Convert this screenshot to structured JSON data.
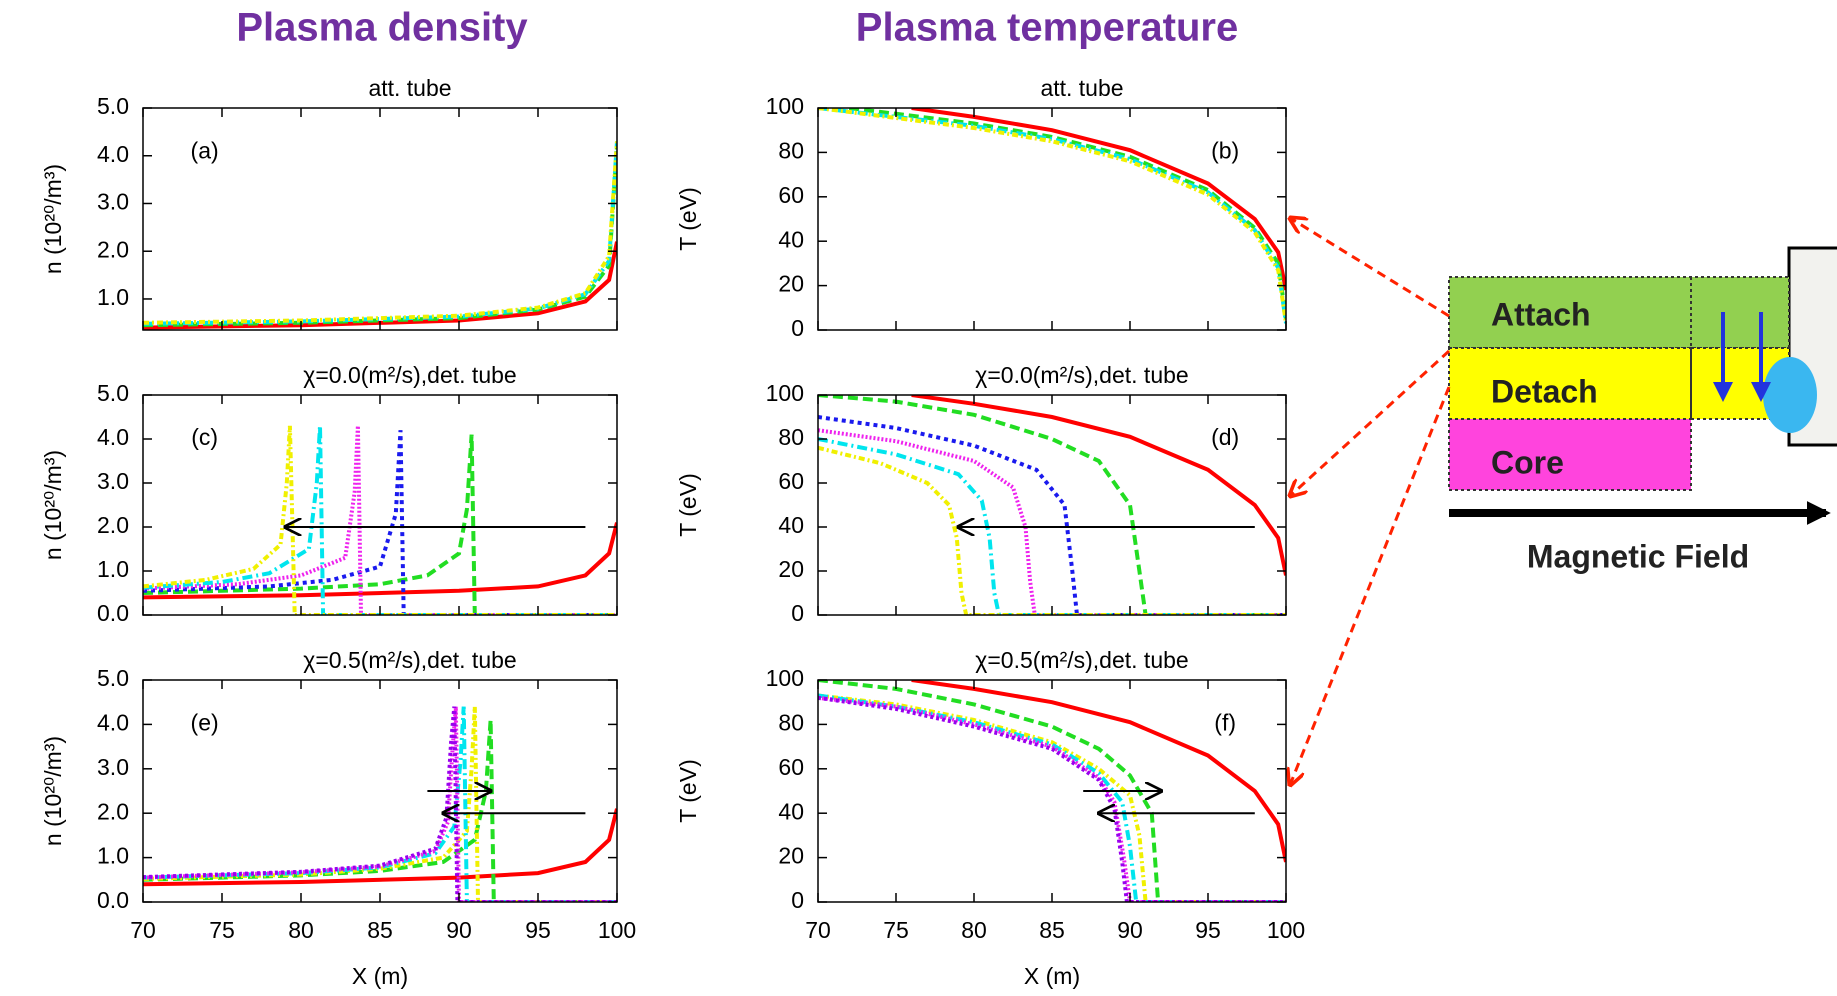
{
  "headings": [
    "Plasma density",
    "Plasma temperature"
  ],
  "diagram": {
    "labels": [
      "Attach",
      "Detach",
      "Core"
    ],
    "field": "Magnetic Field"
  },
  "chart_data": [
    {
      "type": "line",
      "title": "att. tube",
      "ylabel": "n (10²⁰/m³)",
      "annotation": "(a)",
      "xlim": [
        70,
        100
      ],
      "xticks": [
        70,
        75,
        80,
        85,
        90,
        95,
        100
      ],
      "show_xtick_labels": false,
      "ylim": [
        0.35,
        5.0
      ],
      "yticks": [
        {
          "value": 1,
          "label": "1.0"
        },
        {
          "value": 2,
          "label": "2.0"
        },
        {
          "value": 3,
          "label": "3.0"
        },
        {
          "value": 4,
          "label": "4.0"
        },
        {
          "value": 5,
          "label": "5.0"
        }
      ],
      "series": [
        {
          "color": "#ff0000",
          "dash": "",
          "x": [
            70,
            80,
            90,
            95,
            98,
            99.5,
            100
          ],
          "values": [
            0.4,
            0.45,
            0.55,
            0.7,
            0.95,
            1.4,
            2.2
          ]
        },
        {
          "color": "#22dd22",
          "dash": "10 5",
          "x": [
            70,
            80,
            90,
            95,
            98,
            99.5,
            100
          ],
          "values": [
            0.45,
            0.5,
            0.6,
            0.78,
            1.05,
            1.7,
            4.2
          ]
        },
        {
          "color": "#00e5ee",
          "dash": "10 4 2 4",
          "x": [
            70,
            80,
            90,
            95,
            98,
            99.5,
            100
          ],
          "values": [
            0.48,
            0.53,
            0.63,
            0.8,
            1.1,
            1.8,
            4.3
          ]
        },
        {
          "color": "#f0f000",
          "dash": "6 3 2 3",
          "x": [
            70,
            80,
            90,
            95,
            98,
            99.5,
            100
          ],
          "values": [
            0.5,
            0.55,
            0.65,
            0.82,
            1.12,
            1.9,
            4.3
          ]
        }
      ]
    },
    {
      "type": "line",
      "title": "att. tube",
      "ylabel": "T (eV)",
      "annotation": "(b)",
      "xlim": [
        70,
        100
      ],
      "xticks": [
        70,
        75,
        80,
        85,
        90,
        95,
        100
      ],
      "show_xtick_labels": false,
      "ylim": [
        0,
        100
      ],
      "yticks": [
        0,
        20,
        40,
        60,
        80,
        100
      ],
      "series": [
        {
          "color": "#ff0000",
          "dash": "",
          "x": [
            76,
            80,
            85,
            90,
            95,
            98,
            99.5,
            100
          ],
          "values": [
            100,
            96,
            90,
            81,
            66,
            50,
            35,
            18
          ]
        },
        {
          "color": "#22dd22",
          "dash": "10 5",
          "x": [
            72,
            80,
            85,
            90,
            95,
            98,
            99.5,
            100
          ],
          "values": [
            100,
            93,
            87,
            78,
            63,
            46,
            30,
            5
          ]
        },
        {
          "color": "#00e5ee",
          "dash": "10 4 2 4",
          "x": [
            70,
            80,
            85,
            90,
            95,
            98,
            99.5,
            100
          ],
          "values": [
            100,
            92,
            86,
            77,
            62,
            45,
            28,
            3
          ]
        },
        {
          "color": "#f0f000",
          "dash": "6 3 2 3",
          "x": [
            70,
            80,
            85,
            90,
            95,
            98,
            99.5,
            100
          ],
          "values": [
            100,
            91,
            85,
            76,
            61,
            44,
            27,
            3
          ]
        }
      ]
    },
    {
      "type": "line",
      "title": "χ=0.0(m²/s),det. tube",
      "ylabel": "n (10²⁰/m³)",
      "annotation": "(c)",
      "xlim": [
        70,
        100
      ],
      "xticks": [
        70,
        75,
        80,
        85,
        90,
        95,
        100
      ],
      "show_xtick_labels": false,
      "ylim": [
        0,
        5
      ],
      "yticks": [
        {
          "value": 0,
          "label": "0.0"
        },
        {
          "value": 1,
          "label": "1.0"
        },
        {
          "value": 2,
          "label": "2.0"
        },
        {
          "value": 3,
          "label": "3.0"
        },
        {
          "value": 4,
          "label": "4.0"
        },
        {
          "value": 5,
          "label": "5.0"
        }
      ],
      "series": [
        {
          "color": "#ff0000",
          "dash": "",
          "x": [
            70,
            80,
            90,
            95,
            98,
            99.5,
            100
          ],
          "values": [
            0.4,
            0.45,
            0.55,
            0.65,
            0.9,
            1.4,
            2.1
          ]
        },
        {
          "color": "#22dd22",
          "dash": "10 5",
          "x": [
            70,
            80,
            85,
            88,
            90,
            90.5,
            90.8,
            91,
            100
          ],
          "values": [
            0.5,
            0.6,
            0.7,
            0.9,
            1.4,
            2.4,
            4.1,
            0,
            0
          ]
        },
        {
          "color": "#1a1aee",
          "dash": "4 4",
          "x": [
            70,
            78,
            82,
            85,
            86,
            86.3,
            86.5,
            100
          ],
          "values": [
            0.55,
            0.65,
            0.8,
            1.1,
            2.3,
            4.2,
            0,
            0
          ]
        },
        {
          "color": "#ee22ee",
          "dash": "2 2",
          "x": [
            70,
            76,
            80,
            82.8,
            83.4,
            83.6,
            83.8,
            100
          ],
          "values": [
            0.6,
            0.7,
            0.9,
            1.3,
            2.8,
            4.3,
            0,
            0
          ]
        },
        {
          "color": "#00e5ee",
          "dash": "10 4 2 4",
          "x": [
            70,
            75,
            78,
            80.5,
            81,
            81.2,
            81.4,
            100
          ],
          "values": [
            0.62,
            0.75,
            0.95,
            1.5,
            3,
            4.3,
            0,
            0
          ]
        },
        {
          "color": "#f0f000",
          "dash": "6 3 2 3",
          "x": [
            70,
            74,
            77,
            78.7,
            79.1,
            79.3,
            79.6,
            100
          ],
          "values": [
            0.65,
            0.8,
            1.05,
            1.6,
            3,
            4.3,
            0,
            0
          ]
        }
      ]
    },
    {
      "type": "line",
      "title": "χ=0.0(m²/s),det. tube",
      "ylabel": "T (eV)",
      "annotation": "(d)",
      "xlim": [
        70,
        100
      ],
      "xticks": [
        70,
        75,
        80,
        85,
        90,
        95,
        100
      ],
      "show_xtick_labels": false,
      "ylim": [
        0,
        100
      ],
      "yticks": [
        0,
        20,
        40,
        60,
        80,
        100
      ],
      "series": [
        {
          "color": "#ff0000",
          "dash": "",
          "x": [
            76,
            80,
            85,
            90,
            95,
            98,
            99.5,
            100
          ],
          "values": [
            100,
            96,
            90,
            81,
            66,
            50,
            35,
            18
          ]
        },
        {
          "color": "#22dd22",
          "dash": "10 5",
          "x": [
            70,
            75,
            80,
            85,
            88,
            90,
            90.6,
            91,
            100
          ],
          "values": [
            100,
            97,
            91,
            80,
            70,
            50,
            20,
            0,
            0
          ]
        },
        {
          "color": "#1a1aee",
          "dash": "4 4",
          "x": [
            70,
            75,
            80,
            84,
            85.8,
            86.3,
            86.6,
            100
          ],
          "values": [
            90,
            85,
            77,
            66,
            50,
            20,
            0,
            0
          ]
        },
        {
          "color": "#ee22ee",
          "dash": "2 2",
          "x": [
            70,
            75,
            80,
            82.5,
            83.3,
            83.6,
            83.9,
            100
          ],
          "values": [
            84,
            79,
            70,
            58,
            40,
            15,
            0,
            0
          ]
        },
        {
          "color": "#00e5ee",
          "dash": "10 4 2 4",
          "x": [
            70,
            75,
            79,
            80.5,
            81,
            81.3,
            81.6,
            100
          ],
          "values": [
            80,
            73,
            64,
            52,
            35,
            10,
            0,
            0
          ]
        },
        {
          "color": "#f0f000",
          "dash": "6 3 2 3",
          "x": [
            70,
            74,
            77,
            78.4,
            78.9,
            79.2,
            79.5,
            100
          ],
          "values": [
            76,
            69,
            60,
            50,
            35,
            10,
            0,
            0
          ]
        }
      ]
    },
    {
      "type": "line",
      "title": "χ=0.5(m²/s),det. tube",
      "ylabel": "n (10²⁰/m³)",
      "xlabel": "X (m)",
      "annotation": "(e)",
      "xlim": [
        70,
        100
      ],
      "xticks": [
        70,
        75,
        80,
        85,
        90,
        95,
        100
      ],
      "show_xtick_labels": true,
      "ylim": [
        0,
        5
      ],
      "yticks": [
        {
          "value": 0,
          "label": "0.0"
        },
        {
          "value": 1,
          "label": "1.0"
        },
        {
          "value": 2,
          "label": "2.0"
        },
        {
          "value": 3,
          "label": "3.0"
        },
        {
          "value": 4,
          "label": "4.0"
        },
        {
          "value": 5,
          "label": "5.0"
        }
      ],
      "series": [
        {
          "color": "#ff0000",
          "dash": "",
          "x": [
            70,
            80,
            90,
            95,
            98,
            99.5,
            100
          ],
          "values": [
            0.4,
            0.45,
            0.55,
            0.65,
            0.9,
            1.4,
            2.1
          ]
        },
        {
          "color": "#22dd22",
          "dash": "10 5",
          "x": [
            70,
            80,
            85,
            89,
            91,
            91.7,
            92,
            92.2,
            100
          ],
          "values": [
            0.5,
            0.6,
            0.7,
            0.9,
            1.4,
            2.5,
            4.1,
            0,
            0
          ]
        },
        {
          "color": "#f0f000",
          "dash": "6 3 2 3",
          "x": [
            70,
            80,
            85,
            89,
            90.5,
            90.8,
            91,
            91.2,
            100
          ],
          "values": [
            0.52,
            0.62,
            0.75,
            1.0,
            1.6,
            3,
            4.4,
            0,
            0
          ]
        },
        {
          "color": "#00e5ee",
          "dash": "10 4 2 4",
          "x": [
            70,
            80,
            85,
            88.5,
            89.7,
            90.1,
            90.3,
            90.5,
            100
          ],
          "values": [
            0.55,
            0.65,
            0.78,
            1.1,
            1.7,
            3.2,
            4.4,
            0,
            0
          ]
        },
        {
          "color": "#ee22ee",
          "dash": "2 2",
          "x": [
            70,
            80,
            85,
            88.5,
            89.3,
            89.6,
            89.8,
            90,
            100
          ],
          "values": [
            0.55,
            0.67,
            0.8,
            1.15,
            1.8,
            3.5,
            4.4,
            0,
            0
          ]
        },
        {
          "color": "#9900ee",
          "dash": "3 3",
          "x": [
            70,
            80,
            85,
            88.5,
            89.2,
            89.5,
            89.7,
            89.9,
            100
          ],
          "values": [
            0.56,
            0.68,
            0.82,
            1.2,
            1.9,
            3.6,
            4.4,
            0,
            0
          ]
        }
      ]
    },
    {
      "type": "line",
      "title": "χ=0.5(m²/s),det. tube",
      "ylabel": "T (eV)",
      "xlabel": "X (m)",
      "annotation": "(f)",
      "xlim": [
        70,
        100
      ],
      "xticks": [
        70,
        75,
        80,
        85,
        90,
        95,
        100
      ],
      "show_xtick_labels": true,
      "ylim": [
        0,
        100
      ],
      "yticks": [
        0,
        20,
        40,
        60,
        80,
        100
      ],
      "series": [
        {
          "color": "#ff0000",
          "dash": "",
          "x": [
            76,
            80,
            85,
            90,
            95,
            98,
            99.5,
            100
          ],
          "values": [
            100,
            96,
            90,
            81,
            66,
            50,
            35,
            18
          ]
        },
        {
          "color": "#22dd22",
          "dash": "10 5",
          "x": [
            70,
            75,
            80,
            85,
            88,
            90,
            91.4,
            91.8,
            100
          ],
          "values": [
            100,
            96,
            89,
            79,
            69,
            57,
            40,
            0,
            0
          ]
        },
        {
          "color": "#f0f000",
          "dash": "6 3 2 3",
          "x": [
            70,
            75,
            80,
            85,
            88,
            90,
            90.6,
            91,
            100
          ],
          "values": [
            93,
            89,
            82,
            72,
            60,
            48,
            30,
            0,
            0
          ]
        },
        {
          "color": "#00e5ee",
          "dash": "10 4 2 4",
          "x": [
            70,
            75,
            80,
            85,
            88,
            89.5,
            90,
            90.4,
            100
          ],
          "values": [
            93,
            88,
            81,
            71,
            58,
            45,
            25,
            0,
            0
          ]
        },
        {
          "color": "#ee22ee",
          "dash": "2 2",
          "x": [
            70,
            75,
            80,
            85,
            88,
            89,
            89.6,
            90,
            100
          ],
          "values": [
            92,
            88,
            80,
            70,
            56,
            45,
            20,
            0,
            0
          ]
        },
        {
          "color": "#9900ee",
          "dash": "3 3",
          "x": [
            70,
            75,
            80,
            85,
            88,
            89,
            89.5,
            89.8,
            100
          ],
          "values": [
            92,
            87,
            79,
            69,
            55,
            42,
            18,
            0,
            0
          ]
        }
      ]
    }
  ]
}
